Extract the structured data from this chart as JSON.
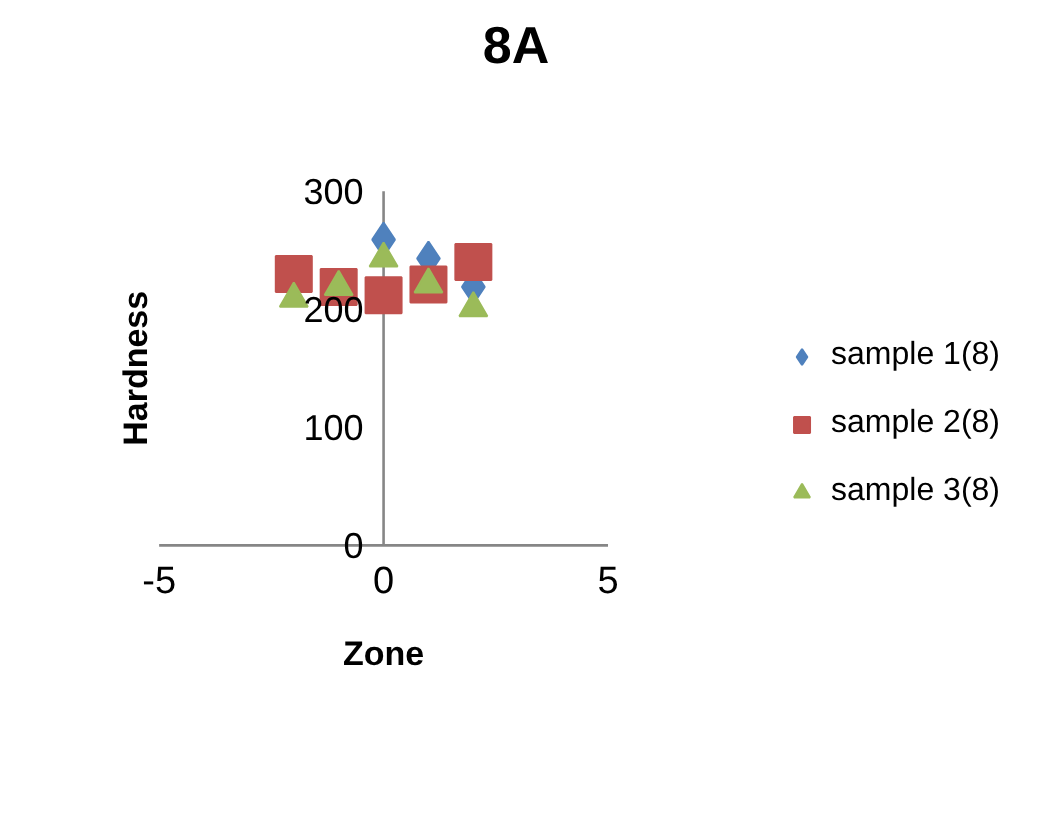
{
  "chart_data": {
    "type": "scatter",
    "title": "8A",
    "xlabel": "Zone",
    "ylabel": "Hardness",
    "x": [
      -2,
      -1,
      0,
      1,
      2
    ],
    "xlim": [
      -5,
      5
    ],
    "xticks": [
      -5,
      0,
      5
    ],
    "ylim": [
      0,
      300
    ],
    "yticks": [
      0,
      100,
      200,
      300
    ],
    "grid": false,
    "legend": "right",
    "series": [
      {
        "name": "sample 1(8)",
        "color": "#4f81bd",
        "marker": "diamond",
        "values": [
          null,
          null,
          259,
          243,
          219
        ]
      },
      {
        "name": "sample 2(8)",
        "color": "#c0504d",
        "marker": "square",
        "values": [
          230,
          219,
          212,
          221,
          240
        ]
      },
      {
        "name": "sample 3(8)",
        "color": "#9bbb59",
        "marker": "triangle",
        "values": [
          209,
          219,
          243,
          221,
          201
        ]
      }
    ]
  }
}
